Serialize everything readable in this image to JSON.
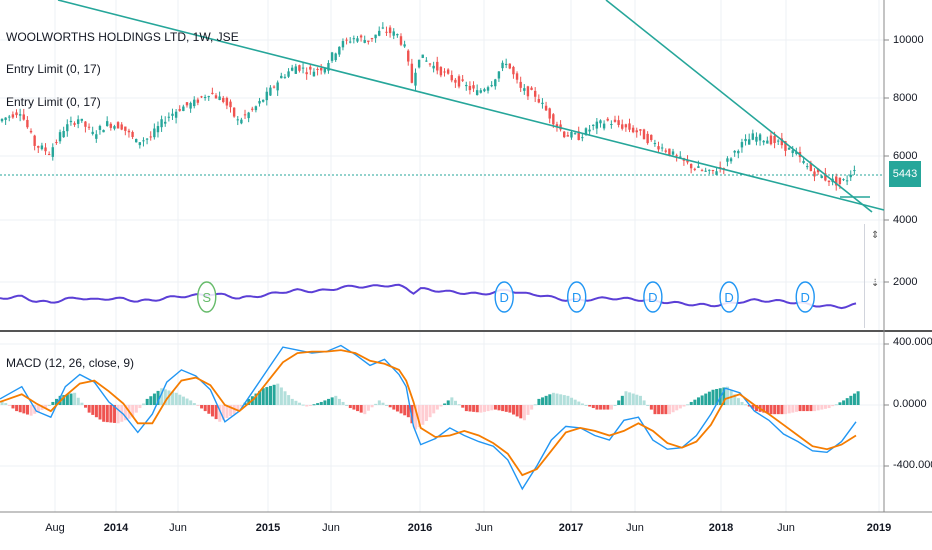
{
  "header": {
    "title": "WOOLWORTHS HOLDINGS LTD, 1W, JSE",
    "indicator1": "Entry Limit (0, 17)",
    "indicator2": "Entry Limit (0, 17)"
  },
  "macd_panel": {
    "label": "MACD (12, 26, close, 9)"
  },
  "price_badge": "5443",
  "price_axis": {
    "ticks": [
      "10000",
      "8000",
      "6000",
      "4000",
      "2000"
    ]
  },
  "macd_axis": {
    "ticks": [
      "400.0000",
      "0.0000",
      "-400.0000"
    ]
  },
  "time_axis": {
    "ticks": [
      {
        "label": "Aug",
        "bold": false
      },
      {
        "label": "2014",
        "bold": true
      },
      {
        "label": "Jun",
        "bold": false
      },
      {
        "label": "2015",
        "bold": true
      },
      {
        "label": "Jun",
        "bold": false
      },
      {
        "label": "2016",
        "bold": true
      },
      {
        "label": "Jun",
        "bold": false
      },
      {
        "label": "2017",
        "bold": true
      },
      {
        "label": "Jun",
        "bold": false
      },
      {
        "label": "2018",
        "bold": true
      },
      {
        "label": "Jun",
        "bold": false
      },
      {
        "label": "2019",
        "bold": true
      }
    ]
  },
  "colors": {
    "up": "#26a69a",
    "down": "#ef5350",
    "macd": "#2196f3",
    "signal": "#f57c00",
    "trend": "#26a69a",
    "volume_line": "#5b3fd6",
    "hist_up_strong": "#26a69a",
    "hist_up_weak": "#b2dfdb",
    "hist_down_strong": "#ef5350",
    "hist_down_weak": "#ffcdd2"
  },
  "chart_data": [
    {
      "type": "candlestick",
      "title": "WOOLWORTHS HOLDINGS LTD, 1W, JSE",
      "ylim": [
        3600,
        11000
      ],
      "ticks": [
        "Aug",
        "2014",
        "Jun",
        "2015",
        "Jun",
        "2016",
        "Jun",
        "2017",
        "Jun",
        "2018",
        "Jun",
        "2019"
      ],
      "close_path": [
        [
          0,
          7200
        ],
        [
          6,
          7600
        ],
        [
          10,
          6300
        ],
        [
          14,
          6000
        ],
        [
          18,
          6900
        ],
        [
          22,
          7300
        ],
        [
          26,
          6700
        ],
        [
          30,
          7100
        ],
        [
          34,
          7000
        ],
        [
          38,
          6400
        ],
        [
          42,
          6600
        ],
        [
          46,
          7300
        ],
        [
          50,
          7700
        ],
        [
          54,
          7900
        ],
        [
          58,
          8300
        ],
        [
          62,
          8000
        ],
        [
          66,
          7200
        ],
        [
          70,
          7600
        ],
        [
          74,
          8200
        ],
        [
          78,
          8900
        ],
        [
          82,
          9300
        ],
        [
          86,
          9100
        ],
        [
          90,
          9300
        ],
        [
          94,
          10100
        ],
        [
          98,
          10400
        ],
        [
          102,
          10300
        ],
        [
          106,
          10700
        ],
        [
          110,
          10500
        ],
        [
          112,
          10000
        ],
        [
          114,
          8700
        ],
        [
          116,
          9700
        ],
        [
          120,
          9300
        ],
        [
          124,
          8900
        ],
        [
          128,
          8600
        ],
        [
          132,
          8300
        ],
        [
          136,
          8700
        ],
        [
          140,
          9500
        ],
        [
          144,
          8400
        ],
        [
          148,
          8200
        ],
        [
          152,
          7400
        ],
        [
          156,
          6700
        ],
        [
          160,
          6600
        ],
        [
          164,
          7000
        ],
        [
          168,
          7200
        ],
        [
          172,
          7000
        ],
        [
          176,
          6800
        ],
        [
          180,
          6400
        ],
        [
          184,
          6100
        ],
        [
          188,
          5700
        ],
        [
          192,
          5400
        ],
        [
          196,
          5200
        ],
        [
          200,
          5500
        ],
        [
          204,
          6200
        ],
        [
          208,
          6600
        ],
        [
          212,
          6500
        ],
        [
          216,
          6300
        ],
        [
          220,
          5900
        ],
        [
          224,
          5300
        ],
        [
          228,
          5000
        ],
        [
          232,
          4800
        ],
        [
          234,
          5000
        ],
        [
          236,
          5440
        ]
      ],
      "volume_line_label": "Entry Limit (0, 17)",
      "signals": [
        {
          "label": "S",
          "week": 57
        },
        {
          "label": "D",
          "week": 139
        },
        {
          "label": "D",
          "week": 159
        },
        {
          "label": "D",
          "week": 180
        },
        {
          "label": "D",
          "week": 201
        },
        {
          "label": "D",
          "week": 222
        }
      ]
    },
    {
      "type": "line",
      "title": "MACD (12, 26, close, 9)",
      "ylim": [
        -560,
        470
      ],
      "series": [
        {
          "name": "MACD",
          "points": [
            [
              0,
              40
            ],
            [
              6,
              120
            ],
            [
              10,
              -40
            ],
            [
              14,
              -80
            ],
            [
              18,
              120
            ],
            [
              22,
              200
            ],
            [
              26,
              150
            ],
            [
              30,
              20
            ],
            [
              34,
              -60
            ],
            [
              38,
              -180
            ],
            [
              42,
              -60
            ],
            [
              46,
              150
            ],
            [
              50,
              230
            ],
            [
              54,
              190
            ],
            [
              58,
              100
            ],
            [
              62,
              -110
            ],
            [
              66,
              -40
            ],
            [
              70,
              100
            ],
            [
              74,
              240
            ],
            [
              78,
              380
            ],
            [
              82,
              360
            ],
            [
              86,
              340
            ],
            [
              90,
              350
            ],
            [
              94,
              390
            ],
            [
              98,
              330
            ],
            [
              102,
              260
            ],
            [
              106,
              300
            ],
            [
              110,
              200
            ],
            [
              112,
              120
            ],
            [
              114,
              -140
            ],
            [
              116,
              -260
            ],
            [
              120,
              -220
            ],
            [
              124,
              -150
            ],
            [
              128,
              -200
            ],
            [
              132,
              -240
            ],
            [
              136,
              -270
            ],
            [
              140,
              -360
            ],
            [
              144,
              -550
            ],
            [
              148,
              -400
            ],
            [
              152,
              -230
            ],
            [
              156,
              -140
            ],
            [
              160,
              -150
            ],
            [
              164,
              -200
            ],
            [
              168,
              -230
            ],
            [
              172,
              -100
            ],
            [
              176,
              -80
            ],
            [
              180,
              -230
            ],
            [
              184,
              -290
            ],
            [
              188,
              -280
            ],
            [
              192,
              -200
            ],
            [
              196,
              -60
            ],
            [
              200,
              110
            ],
            [
              204,
              80
            ],
            [
              208,
              -40
            ],
            [
              212,
              -100
            ],
            [
              216,
              -190
            ],
            [
              220,
              -240
            ],
            [
              224,
              -300
            ],
            [
              228,
              -310
            ],
            [
              232,
              -240
            ],
            [
              236,
              -110
            ]
          ]
        },
        {
          "name": "Signal",
          "points": [
            [
              0,
              20
            ],
            [
              6,
              70
            ],
            [
              10,
              10
            ],
            [
              14,
              -40
            ],
            [
              18,
              60
            ],
            [
              22,
              140
            ],
            [
              26,
              160
            ],
            [
              30,
              90
            ],
            [
              34,
              10
            ],
            [
              38,
              -120
            ],
            [
              42,
              -120
            ],
            [
              46,
              40
            ],
            [
              50,
              160
            ],
            [
              54,
              180
            ],
            [
              58,
              130
            ],
            [
              62,
              0
            ],
            [
              66,
              -40
            ],
            [
              70,
              40
            ],
            [
              74,
              160
            ],
            [
              78,
              280
            ],
            [
              82,
              340
            ],
            [
              86,
              350
            ],
            [
              90,
              350
            ],
            [
              94,
              360
            ],
            [
              98,
              340
            ],
            [
              102,
              290
            ],
            [
              106,
              270
            ],
            [
              110,
              230
            ],
            [
              112,
              160
            ],
            [
              114,
              20
            ],
            [
              116,
              -150
            ],
            [
              120,
              -210
            ],
            [
              124,
              -200
            ],
            [
              128,
              -170
            ],
            [
              132,
              -200
            ],
            [
              136,
              -250
            ],
            [
              140,
              -320
            ],
            [
              144,
              -460
            ],
            [
              148,
              -420
            ],
            [
              152,
              -300
            ],
            [
              156,
              -180
            ],
            [
              160,
              -150
            ],
            [
              164,
              -170
            ],
            [
              168,
              -200
            ],
            [
              172,
              -170
            ],
            [
              176,
              -120
            ],
            [
              180,
              -170
            ],
            [
              184,
              -250
            ],
            [
              188,
              -280
            ],
            [
              192,
              -240
            ],
            [
              196,
              -130
            ],
            [
              200,
              40
            ],
            [
              204,
              70
            ],
            [
              208,
              0
            ],
            [
              212,
              -60
            ],
            [
              216,
              -130
            ],
            [
              220,
              -200
            ],
            [
              224,
              -270
            ],
            [
              228,
              -290
            ],
            [
              232,
              -260
            ],
            [
              236,
              -200
            ]
          ]
        }
      ],
      "histogram": [
        [
          0,
          30
        ],
        [
          4,
          -40
        ],
        [
          8,
          -70
        ],
        [
          12,
          -20
        ],
        [
          16,
          60
        ],
        [
          20,
          80
        ],
        [
          24,
          -50
        ],
        [
          28,
          -110
        ],
        [
          32,
          -120
        ],
        [
          36,
          -80
        ],
        [
          40,
          40
        ],
        [
          44,
          110
        ],
        [
          48,
          80
        ],
        [
          52,
          30
        ],
        [
          56,
          -40
        ],
        [
          60,
          -110
        ],
        [
          64,
          -60
        ],
        [
          68,
          40
        ],
        [
          72,
          110
        ],
        [
          76,
          140
        ],
        [
          80,
          40
        ],
        [
          84,
          -10
        ],
        [
          88,
          20
        ],
        [
          92,
          60
        ],
        [
          96,
          -20
        ],
        [
          100,
          -60
        ],
        [
          104,
          30
        ],
        [
          108,
          -30
        ],
        [
          112,
          -80
        ],
        [
          114,
          -160
        ],
        [
          116,
          -130
        ],
        [
          120,
          -30
        ],
        [
          124,
          50
        ],
        [
          128,
          -40
        ],
        [
          132,
          -50
        ],
        [
          136,
          -30
        ],
        [
          140,
          -50
        ],
        [
          144,
          -100
        ],
        [
          148,
          40
        ],
        [
          152,
          80
        ],
        [
          156,
          60
        ],
        [
          160,
          10
        ],
        [
          164,
          -30
        ],
        [
          168,
          -30
        ],
        [
          172,
          90
        ],
        [
          176,
          60
        ],
        [
          180,
          -60
        ],
        [
          184,
          -60
        ],
        [
          188,
          -10
        ],
        [
          192,
          50
        ],
        [
          196,
          100
        ],
        [
          200,
          120
        ],
        [
          204,
          20
        ],
        [
          208,
          -40
        ],
        [
          212,
          -60
        ],
        [
          216,
          -60
        ],
        [
          220,
          -40
        ],
        [
          224,
          -40
        ],
        [
          228,
          -20
        ],
        [
          232,
          30
        ],
        [
          236,
          90
        ]
      ]
    }
  ]
}
